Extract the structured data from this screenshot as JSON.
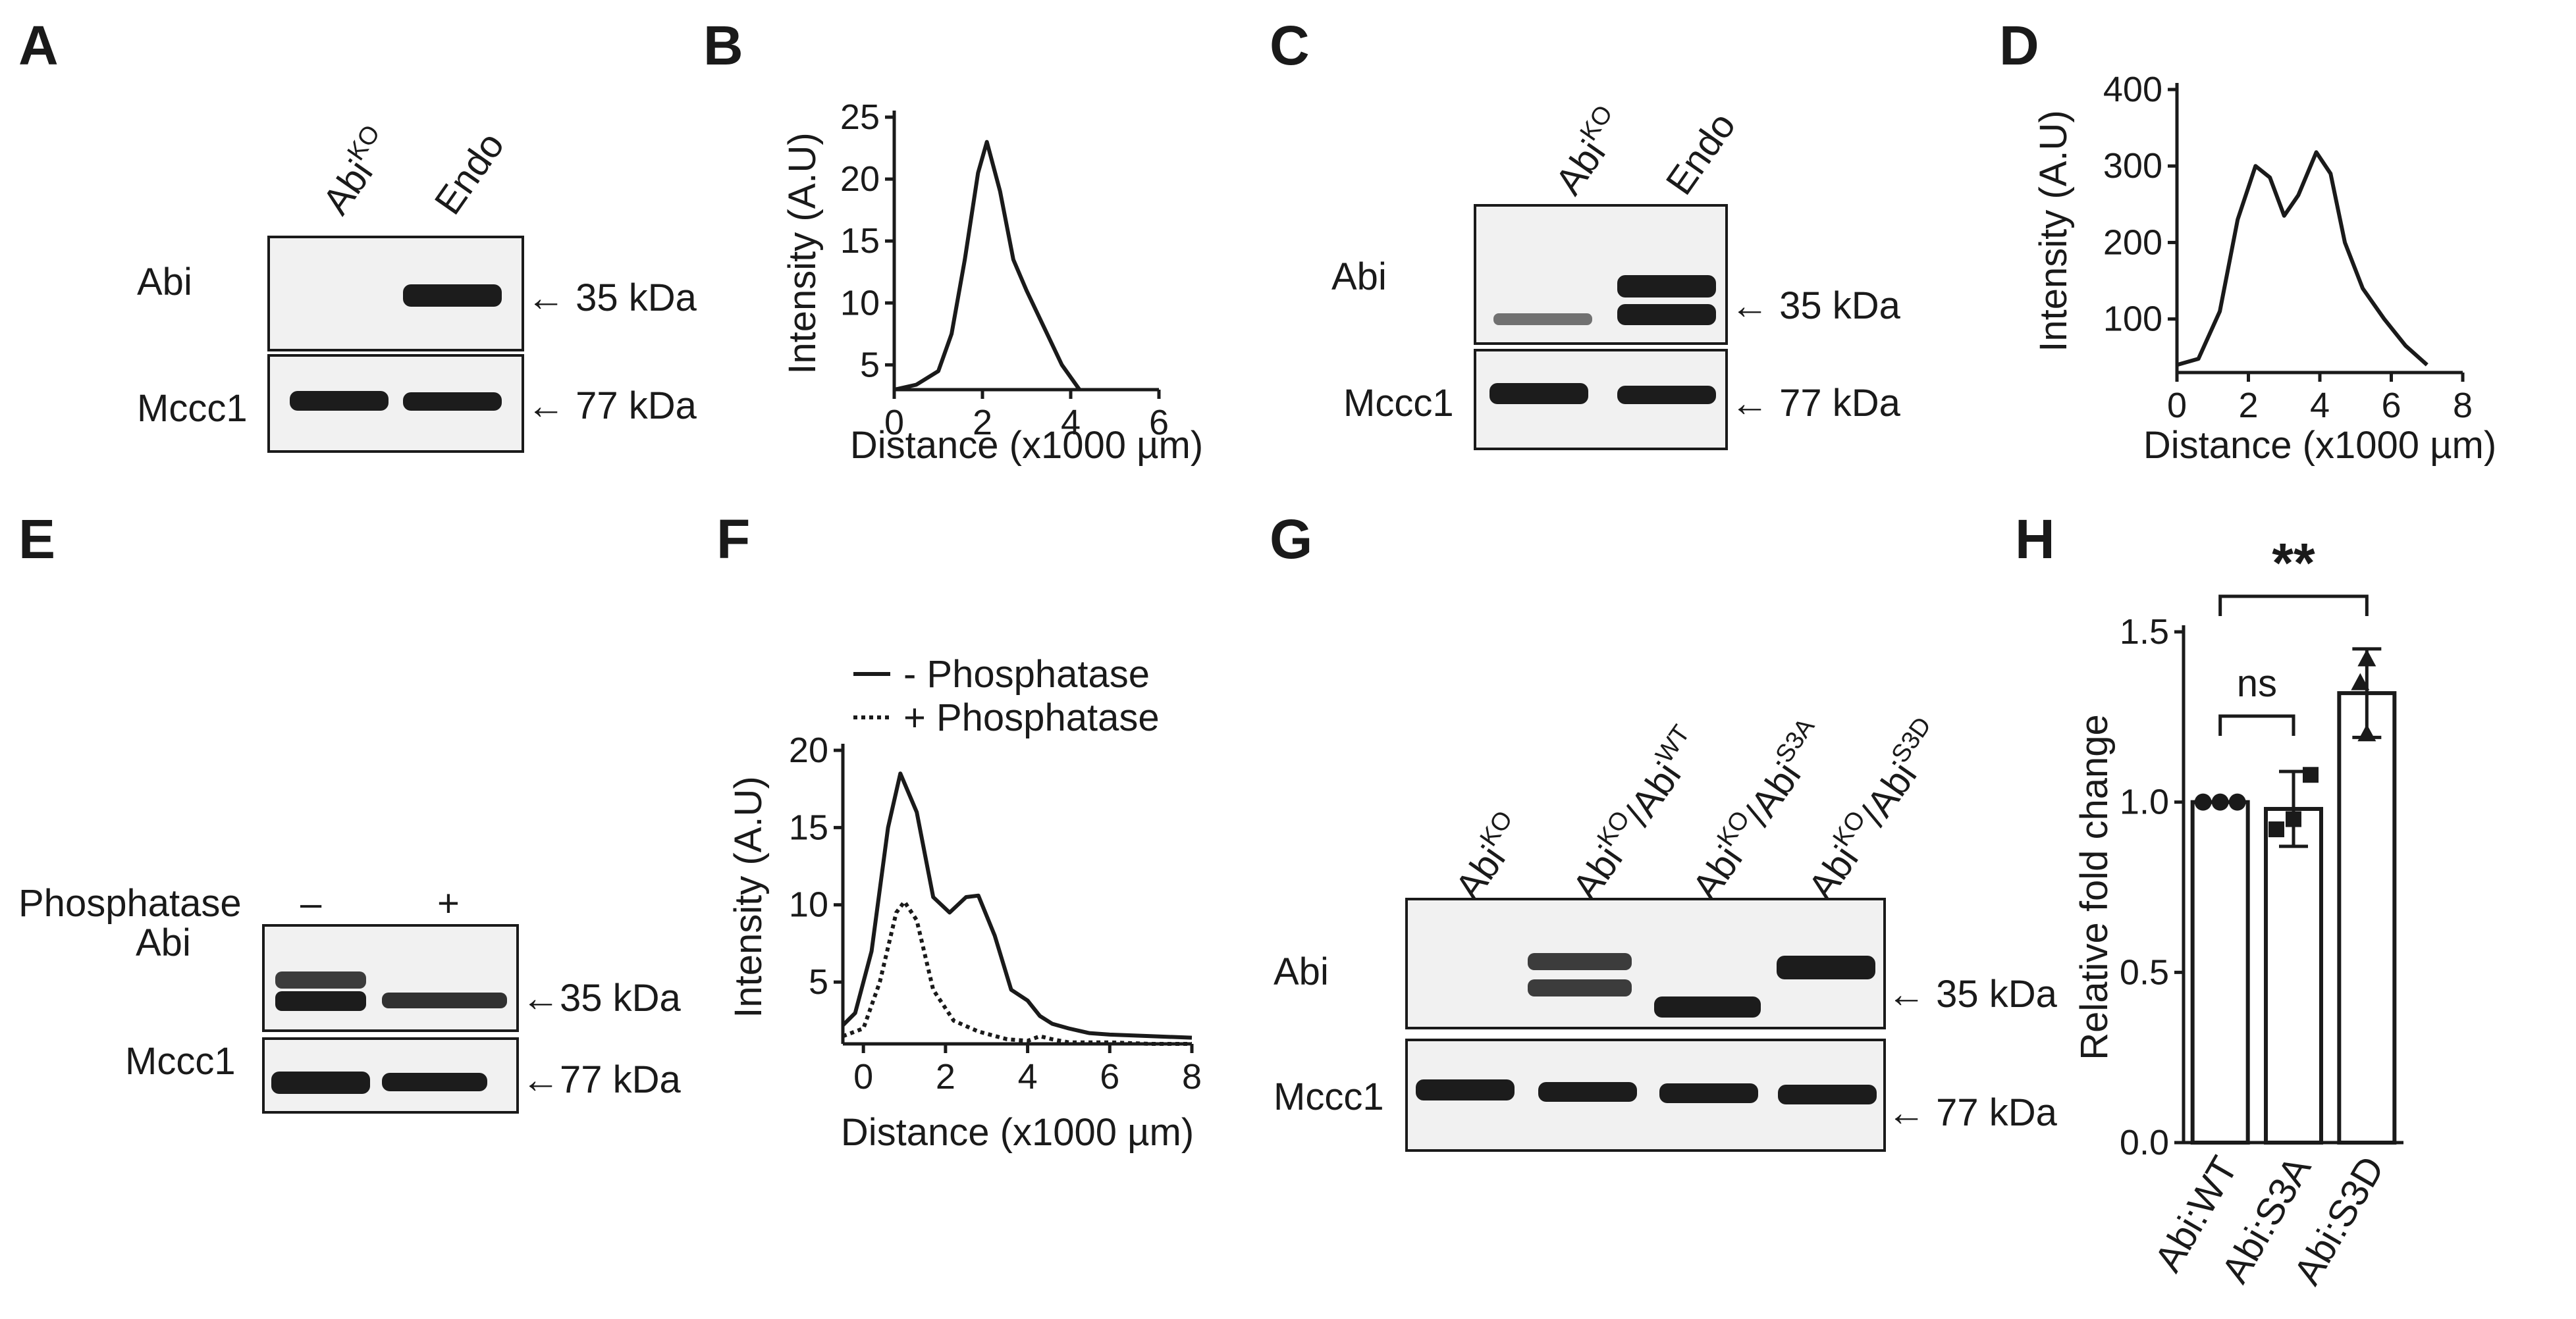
{
  "panels": {
    "A": {
      "letter": "A",
      "lanes": [
        "Abi^KO",
        "Endo"
      ],
      "rows": [
        {
          "label": "Abi",
          "marker": "35 kDa"
        },
        {
          "label": "Mccc1",
          "marker": "77 kDa"
        }
      ]
    },
    "B": {
      "letter": "B"
    },
    "C": {
      "letter": "C",
      "lanes": [
        "Abi^KO",
        "Endo"
      ],
      "rows": [
        {
          "label": "Abi",
          "marker": "35 kDa"
        },
        {
          "label": "Mccc1",
          "marker": "77 kDa"
        }
      ]
    },
    "D": {
      "letter": "D"
    },
    "E": {
      "letter": "E",
      "treatment_label": "Phosphatase",
      "lanes": [
        "–",
        "+"
      ],
      "rows": [
        {
          "label": "Abi",
          "marker": "35 kDa"
        },
        {
          "label": "Mccc1",
          "marker": "77 kDa"
        }
      ]
    },
    "F": {
      "letter": "F"
    },
    "G": {
      "letter": "G",
      "lanes": [
        "Abi^KO",
        "Abi^KO/Abi^WT",
        "Abi^KO/Abi^S3A",
        "Abi^KO/Abi^S3D"
      ],
      "rows": [
        {
          "label": "Abi",
          "marker": "35 kDa"
        },
        {
          "label": "Mccc1",
          "marker": "77 kDa"
        }
      ]
    },
    "H": {
      "letter": "H"
    }
  },
  "chart_data": [
    {
      "panel": "B",
      "type": "line",
      "xlabel": "Distance (x1000 µm)",
      "ylabel": "Intensity (A.U)",
      "xlim": [
        0,
        6
      ],
      "ylim": [
        3,
        25
      ],
      "xticks": [
        0,
        2,
        4,
        6
      ],
      "yticks": [
        5,
        10,
        15,
        20,
        25
      ],
      "series": [
        {
          "style": "solid",
          "x": [
            0,
            0.5,
            1.0,
            1.3,
            1.6,
            1.9,
            2.1,
            2.4,
            2.7,
            3.0,
            3.4,
            3.8,
            4.2
          ],
          "y": [
            3,
            3.4,
            4.5,
            7.5,
            13.5,
            20.5,
            23,
            19,
            13.5,
            11,
            8,
            5,
            3
          ]
        }
      ]
    },
    {
      "panel": "D",
      "type": "line",
      "xlabel": "Distance (x1000 µm)",
      "ylabel": "Intensity (A.U)",
      "xlim": [
        0,
        8
      ],
      "ylim": [
        30,
        400
      ],
      "xticks": [
        0,
        2,
        4,
        6,
        8
      ],
      "yticks": [
        100,
        200,
        300,
        400
      ],
      "series": [
        {
          "style": "solid",
          "x": [
            0,
            0.6,
            1.2,
            1.7,
            2.2,
            2.6,
            3.0,
            3.4,
            3.9,
            4.3,
            4.7,
            5.2,
            5.8,
            6.4,
            7.0
          ],
          "y": [
            40,
            48,
            110,
            230,
            300,
            285,
            235,
            262,
            318,
            290,
            200,
            140,
            100,
            65,
            40
          ]
        }
      ]
    },
    {
      "panel": "F",
      "type": "line",
      "xlabel": "Distance (x1000 µm)",
      "ylabel": "Intensity (A.U)",
      "xlim": [
        -0.5,
        8
      ],
      "ylim": [
        1,
        20
      ],
      "xticks": [
        0,
        2,
        4,
        6,
        8
      ],
      "yticks": [
        5,
        10,
        15,
        20
      ],
      "legend": [
        "- Phosphatase",
        "+ Phosphatase"
      ],
      "series": [
        {
          "name": "- Phosphatase",
          "style": "solid",
          "x": [
            -0.5,
            -0.2,
            0.2,
            0.6,
            0.9,
            1.3,
            1.7,
            2.1,
            2.5,
            2.8,
            3.2,
            3.6,
            4.0,
            4.3,
            4.6,
            5.0,
            5.5,
            6.0,
            7.0,
            8.0
          ],
          "y": [
            2.2,
            3,
            7,
            15,
            18.5,
            16,
            10.5,
            9.5,
            10.5,
            10.6,
            8,
            4.5,
            3.8,
            2.8,
            2.3,
            2,
            1.7,
            1.6,
            1.5,
            1.4
          ]
        },
        {
          "name": "+ Phosphatase",
          "style": "dotted",
          "x": [
            -0.5,
            0,
            0.4,
            0.8,
            1.0,
            1.3,
            1.7,
            2.2,
            2.8,
            3.5,
            4.0,
            4.3,
            4.6,
            5.0,
            6.0,
            7.0,
            8.0
          ],
          "y": [
            1.5,
            2,
            5,
            9.5,
            10.2,
            9,
            4.5,
            2.5,
            1.8,
            1.3,
            1.2,
            1.5,
            1.3,
            1.1,
            1.1,
            1.0,
            1.0
          ]
        }
      ]
    },
    {
      "panel": "H",
      "type": "bar",
      "ylabel": "Relative fold change",
      "ylim": [
        0,
        1.5
      ],
      "yticks": [
        "0.0",
        "0.5",
        "1.0",
        "1.5"
      ],
      "categories": [
        "Abi:WT",
        "Abi:S3A",
        "Abi:S3D"
      ],
      "values": [
        1.0,
        0.98,
        1.32
      ],
      "errors": [
        0.0,
        0.11,
        0.13
      ],
      "points": [
        [
          1.0,
          1.0,
          1.0
        ],
        [
          0.92,
          0.95,
          1.08
        ],
        [
          1.2,
          1.35,
          1.42
        ]
      ],
      "markers": [
        "circle",
        "square",
        "triangle"
      ],
      "significance": [
        {
          "from": 0,
          "to": 1,
          "label": "ns"
        },
        {
          "from": 0,
          "to": 2,
          "label": "**"
        }
      ]
    }
  ]
}
